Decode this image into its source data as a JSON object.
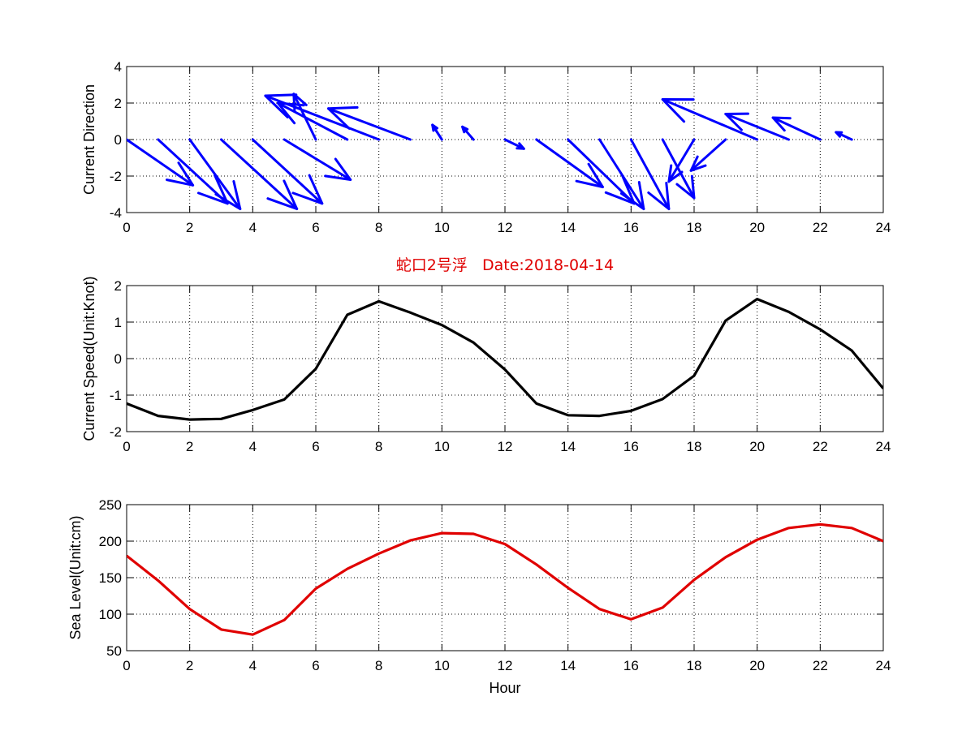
{
  "figure": {
    "title": "蛇口2号浮   Date:2018-04-14"
  },
  "chart_data": [
    {
      "type": "quiver",
      "ylabel": "Current Direction",
      "xlabel": "",
      "xlim": [
        0,
        24
      ],
      "ylim": [
        -4,
        4
      ],
      "xticks": [
        0,
        2,
        4,
        6,
        8,
        10,
        12,
        14,
        16,
        18,
        20,
        22,
        24
      ],
      "yticks": [
        -4,
        -2,
        0,
        2,
        4
      ],
      "grid": true,
      "color": "#0000ff",
      "x": [
        0,
        1,
        2,
        3,
        4,
        5,
        6,
        7,
        8,
        9,
        10,
        11,
        12,
        13,
        14,
        15,
        16,
        17,
        18,
        19,
        20,
        21,
        22,
        23
      ],
      "u": [
        2.1,
        2.2,
        1.6,
        2.4,
        2.2,
        2.1,
        -0.7,
        -2.2,
        -3.6,
        -2.6,
        -0.3,
        -0.35,
        0.6,
        2.1,
        2.1,
        1.4,
        1.2,
        1.0,
        -0.8,
        -1.1,
        -3.0,
        -2.0,
        -1.5,
        -0.5
      ],
      "v": [
        -2.5,
        -3.5,
        -3.8,
        -3.8,
        -3.5,
        -2.2,
        2.5,
        2.0,
        2.4,
        1.7,
        0.8,
        0.7,
        -0.5,
        -2.6,
        -3.5,
        -3.8,
        -3.8,
        -3.2,
        -2.3,
        -1.7,
        2.2,
        1.4,
        1.2,
        0.4
      ]
    },
    {
      "type": "line",
      "ylabel": "Current Speed(Unit:Knot)",
      "xlabel": "",
      "xlim": [
        0,
        24
      ],
      "ylim": [
        -2,
        2
      ],
      "xticks": [
        0,
        2,
        4,
        6,
        8,
        10,
        12,
        14,
        16,
        18,
        20,
        22,
        24
      ],
      "yticks": [
        -2,
        -1,
        0,
        1,
        2
      ],
      "grid": true,
      "color": "#000000",
      "x": [
        0,
        1,
        2,
        3,
        4,
        5,
        6,
        7,
        8,
        9,
        10,
        11,
        12,
        13,
        14,
        15,
        16,
        17,
        18,
        19,
        20,
        21,
        22,
        23,
        24
      ],
      "y": [
        -1.23,
        -1.57,
        -1.67,
        -1.65,
        -1.41,
        -1.12,
        -0.28,
        1.2,
        1.57,
        1.26,
        0.92,
        0.44,
        -0.3,
        -1.23,
        -1.55,
        -1.57,
        -1.43,
        -1.11,
        -0.47,
        1.04,
        1.63,
        1.28,
        0.8,
        0.22,
        -0.82
      ]
    },
    {
      "type": "line",
      "ylabel": "Sea Level(Unit:cm)",
      "xlabel": "Hour",
      "xlim": [
        0,
        24
      ],
      "ylim": [
        50,
        250
      ],
      "xticks": [
        0,
        2,
        4,
        6,
        8,
        10,
        12,
        14,
        16,
        18,
        20,
        22,
        24
      ],
      "yticks": [
        50,
        100,
        150,
        200,
        250
      ],
      "grid": true,
      "color": "#e00000",
      "x": [
        0,
        1,
        2,
        3,
        4,
        5,
        6,
        7,
        8,
        9,
        10,
        11,
        12,
        13,
        14,
        15,
        16,
        17,
        18,
        19,
        20,
        21,
        22,
        23,
        24
      ],
      "y": [
        180,
        146,
        107,
        79,
        72,
        92,
        135,
        162,
        183,
        201,
        211,
        210,
        196,
        168,
        136,
        107,
        93,
        109,
        147,
        178,
        202,
        218,
        223,
        218,
        200
      ]
    }
  ]
}
